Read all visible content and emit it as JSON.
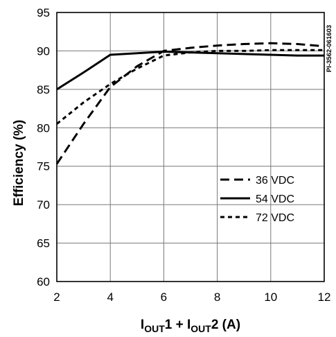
{
  "chart_data": {
    "type": "line",
    "title": "",
    "xlabel": {
      "main1": "I",
      "sub1": "OUT",
      "main2": "1 + I",
      "sub2": "OUT",
      "main3": "2 (A)"
    },
    "ylabel": "Efficiency (%)",
    "xlim": [
      2,
      12
    ],
    "ylim": [
      60,
      95
    ],
    "xticks": [
      "2",
      "4",
      "6",
      "8",
      "10",
      "12"
    ],
    "yticks": [
      "60",
      "65",
      "70",
      "75",
      "80",
      "85",
      "90",
      "95"
    ],
    "grid": true,
    "legend_position": "lower-right",
    "code_label": "PI-3562-061603",
    "series": [
      {
        "name": "36 VDC",
        "style": "long-dash",
        "points": [
          [
            2,
            75.3
          ],
          [
            3,
            80.5
          ],
          [
            4,
            85.3
          ],
          [
            5,
            88.0
          ],
          [
            6,
            90.0
          ],
          [
            7,
            90.4
          ],
          [
            8,
            90.7
          ],
          [
            9,
            90.9
          ],
          [
            10,
            91.0
          ],
          [
            11,
            90.9
          ],
          [
            12,
            90.6
          ]
        ]
      },
      {
        "name": "54 VDC",
        "style": "solid",
        "points": [
          [
            2,
            85.0
          ],
          [
            3,
            87.2
          ],
          [
            4,
            89.5
          ],
          [
            5,
            89.7
          ],
          [
            6,
            89.9
          ],
          [
            7,
            89.8
          ],
          [
            8,
            89.7
          ],
          [
            9,
            89.6
          ],
          [
            10,
            89.5
          ],
          [
            11,
            89.4
          ],
          [
            12,
            89.4
          ]
        ]
      },
      {
        "name": "72 VDC",
        "style": "short-dash",
        "points": [
          [
            2,
            80.5
          ],
          [
            3,
            83.3
          ],
          [
            4,
            85.7
          ],
          [
            5,
            87.7
          ],
          [
            6,
            89.4
          ],
          [
            7,
            89.8
          ],
          [
            8,
            90.0
          ],
          [
            9,
            90.0
          ],
          [
            10,
            90.1
          ],
          [
            11,
            90.1
          ],
          [
            12,
            90.1
          ]
        ]
      }
    ]
  }
}
